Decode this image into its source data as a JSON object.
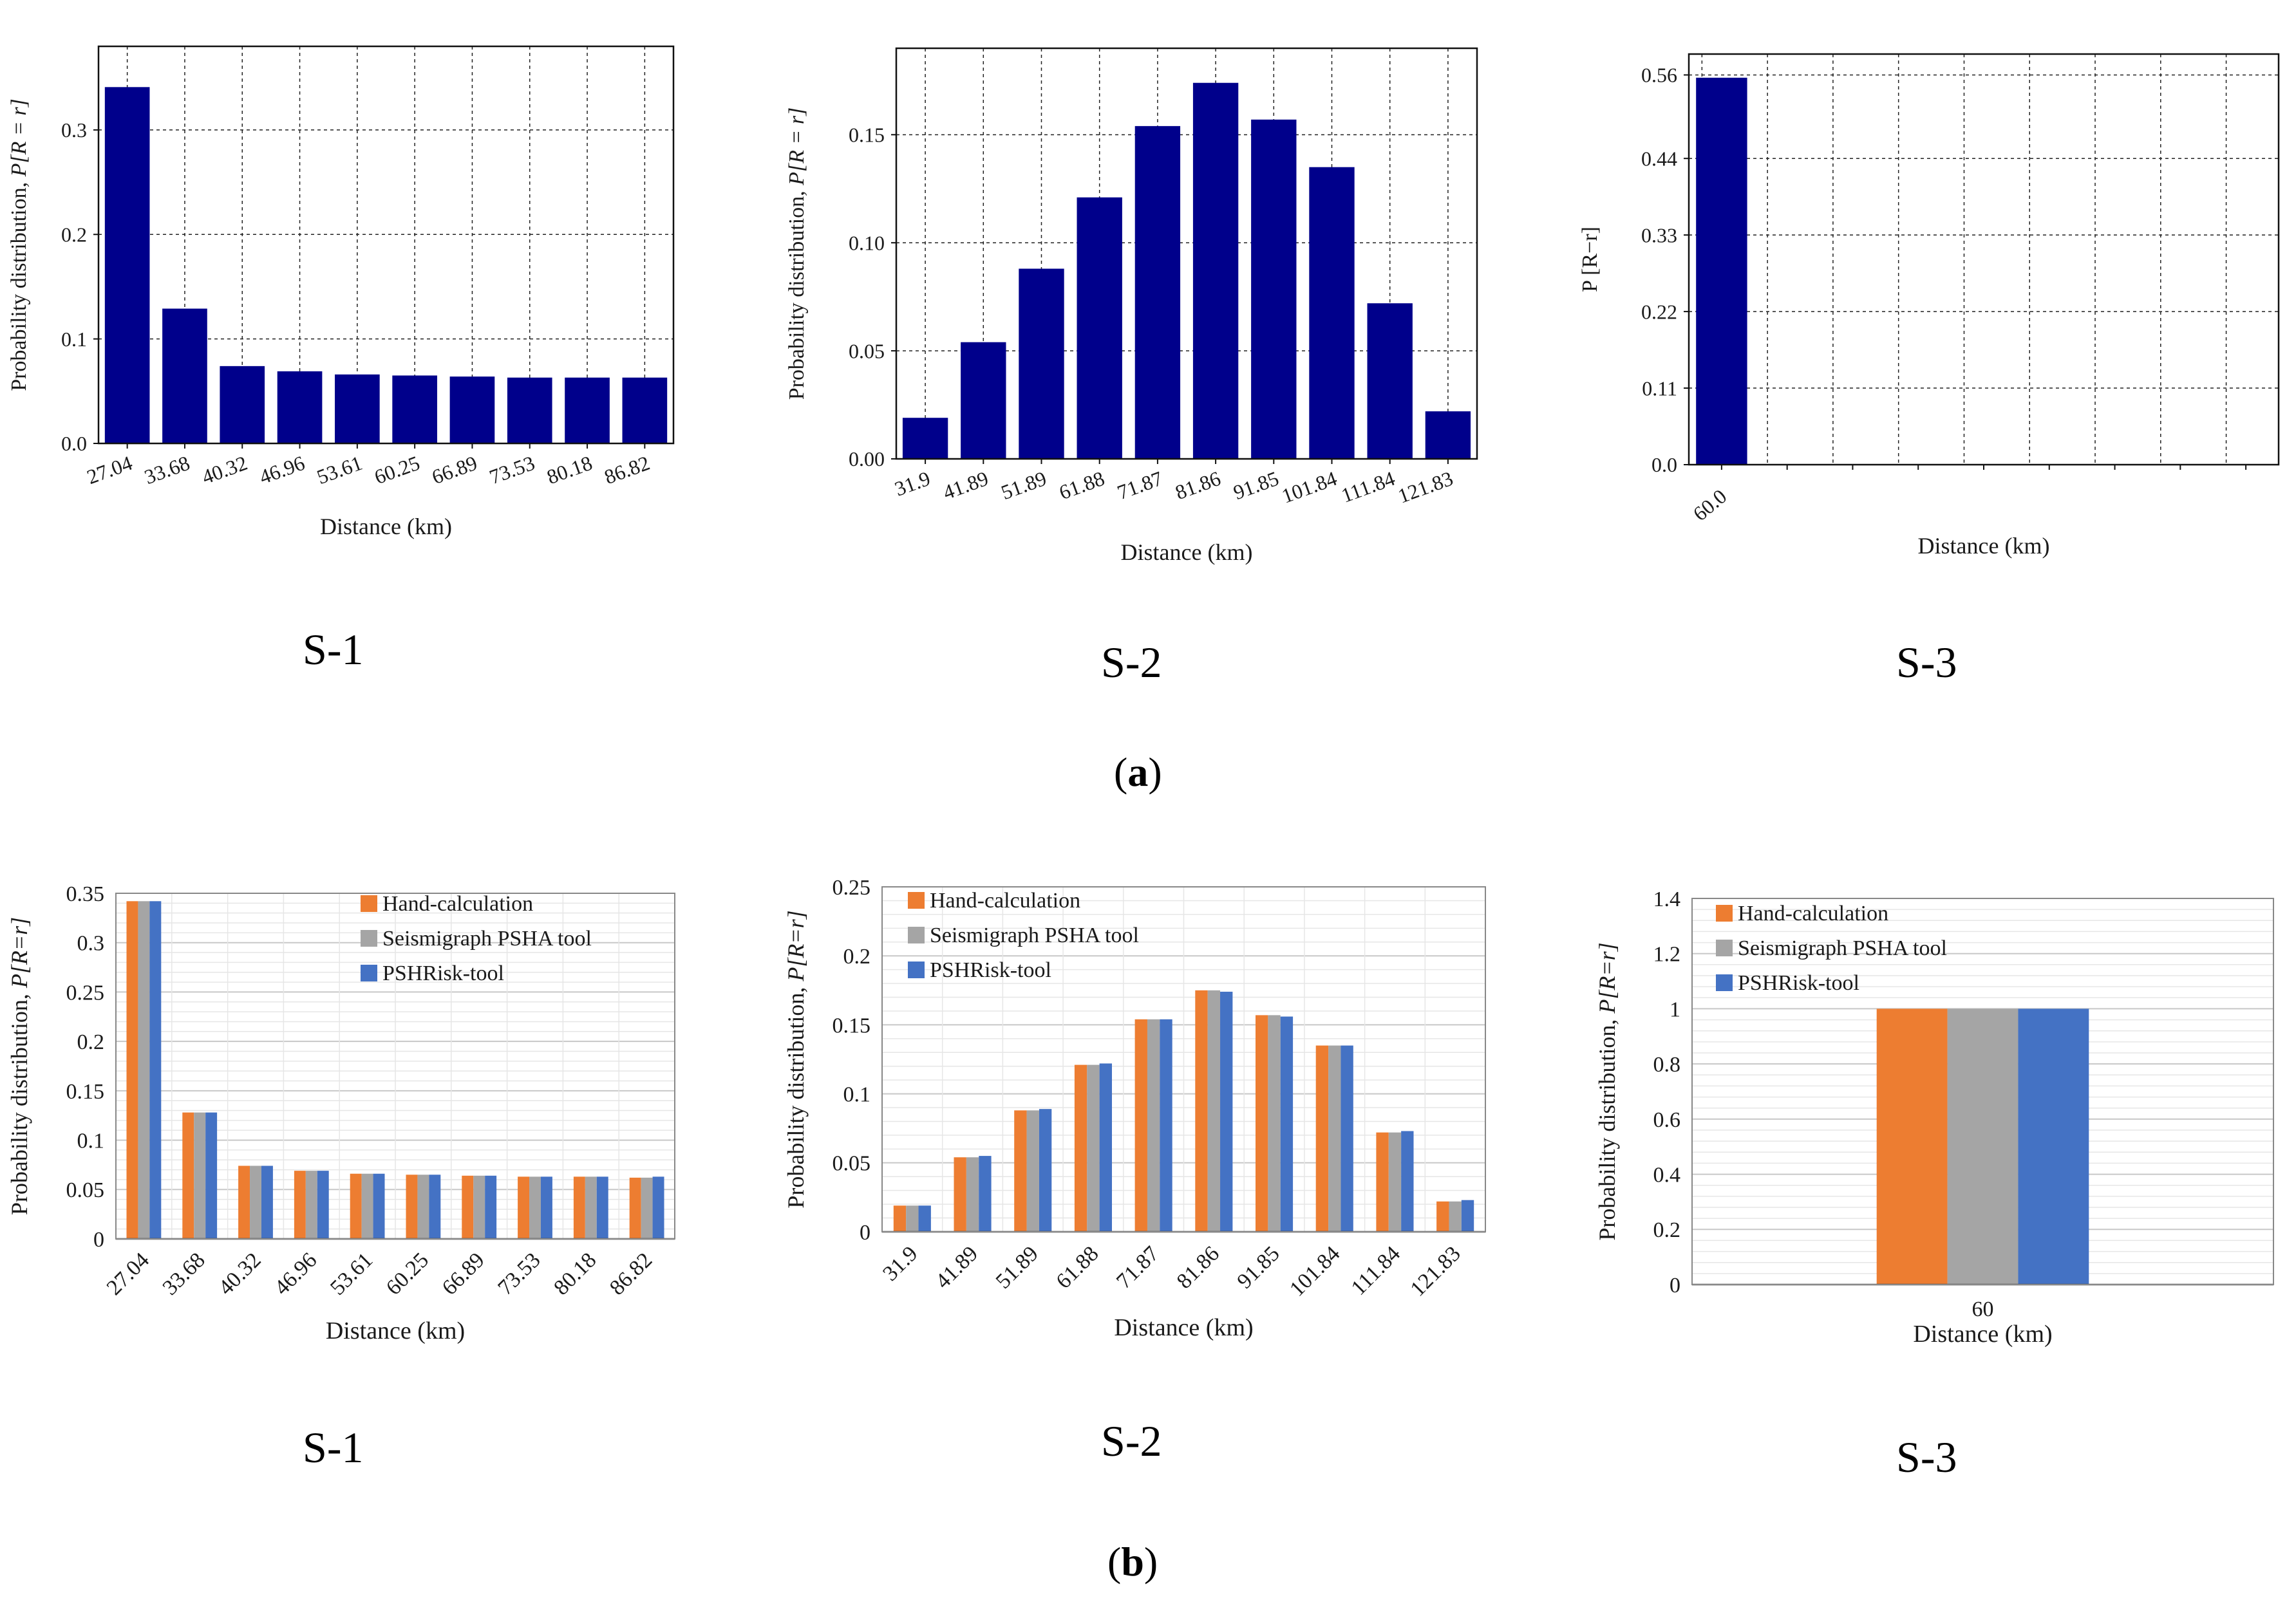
{
  "colors": {
    "navy": "#00008b",
    "hand": "#ed7d31",
    "seis": "#a5a5a5",
    "pshr": "#4472c4"
  },
  "captions": {
    "a": {
      "open": "(",
      "letter": "a",
      "close": ")"
    },
    "b": {
      "open": "(",
      "letter": "b",
      "close": ")"
    },
    "top": [
      "S-1",
      "S-2",
      "S-3"
    ],
    "bottom": [
      "S-1",
      "S-2",
      "S-3"
    ]
  },
  "chart_data": [
    {
      "id": "a-s1",
      "panel": "a",
      "site": "S-1",
      "type": "bar",
      "xlabel": "Distance (km)",
      "ylabel": "Probability distribution, ",
      "ylabel_math": "P[R = r]",
      "categories": [
        "27.04",
        "33.68",
        "40.32",
        "46.96",
        "53.61",
        "60.25",
        "66.89",
        "73.53",
        "80.18",
        "86.82"
      ],
      "values": [
        0.341,
        0.129,
        0.074,
        0.069,
        0.066,
        0.065,
        0.064,
        0.063,
        0.063,
        0.063
      ],
      "ylim": [
        0,
        0.38
      ],
      "yticks": [
        0.0,
        0.1,
        0.2,
        0.3
      ],
      "ytick_labels": [
        "0.0",
        "0.1",
        "0.2",
        "0.3"
      ],
      "grid": true
    },
    {
      "id": "a-s2",
      "panel": "a",
      "site": "S-2",
      "type": "bar",
      "xlabel": "Distance (km)",
      "ylabel": "Probability distribution, ",
      "ylabel_math": "P[R = r]",
      "categories": [
        "31.9",
        "41.89",
        "51.89",
        "61.88",
        "71.87",
        "81.86",
        "91.85",
        "101.84",
        "111.84",
        "121.83"
      ],
      "values": [
        0.019,
        0.054,
        0.088,
        0.121,
        0.154,
        0.174,
        0.157,
        0.135,
        0.072,
        0.022
      ],
      "ylim": [
        0,
        0.19
      ],
      "yticks": [
        0.0,
        0.05,
        0.1,
        0.15
      ],
      "ytick_labels": [
        "0.00",
        "0.05",
        "0.10",
        "0.15"
      ],
      "grid": true
    },
    {
      "id": "a-s3",
      "panel": "a",
      "site": "S-3",
      "type": "bar",
      "xlabel": "Distance (km)",
      "ylabel": "P [R−r]",
      "categories": [
        "60.0"
      ],
      "values": [
        0.556
      ],
      "ylim": [
        0,
        0.59
      ],
      "yticks": [
        0.0,
        0.11,
        0.22,
        0.33,
        0.44,
        0.56
      ],
      "ytick_labels": [
        "0.0",
        "0.11",
        "0.22",
        "0.33",
        "0.44",
        "0.56"
      ],
      "grid": true
    },
    {
      "id": "b-s1",
      "panel": "b",
      "site": "S-1",
      "type": "bar",
      "xlabel": "Distance (km)",
      "ylabel": "Probability distribution, ",
      "ylabel_math": "P[R=r]",
      "categories": [
        "27.04",
        "33.68",
        "40.32",
        "46.96",
        "53.61",
        "60.25",
        "66.89",
        "73.53",
        "80.18",
        "86.82"
      ],
      "legend": "top-right",
      "series": [
        {
          "name": "Hand-calculation",
          "color": "#ed7d31",
          "values": [
            0.342,
            0.128,
            0.074,
            0.069,
            0.066,
            0.065,
            0.064,
            0.063,
            0.063,
            0.062
          ]
        },
        {
          "name": "Seismigraph PSHA tool",
          "color": "#a5a5a5",
          "values": [
            0.342,
            0.128,
            0.074,
            0.069,
            0.066,
            0.065,
            0.064,
            0.063,
            0.063,
            0.062
          ]
        },
        {
          "name": "PSHRisk-tool",
          "color": "#4472c4",
          "values": [
            0.342,
            0.128,
            0.074,
            0.069,
            0.066,
            0.065,
            0.064,
            0.063,
            0.063,
            0.063
          ]
        }
      ],
      "ylim": [
        0,
        0.35
      ],
      "yticks": [
        0,
        0.05,
        0.1,
        0.15,
        0.2,
        0.25,
        0.3,
        0.35
      ],
      "ytick_labels": [
        "0",
        "0.05",
        "0.1",
        "0.15",
        "0.2",
        "0.25",
        "0.3",
        "0.35"
      ],
      "grid": true
    },
    {
      "id": "b-s2",
      "panel": "b",
      "site": "S-2",
      "type": "bar",
      "xlabel": "Distance (km)",
      "ylabel": "Probability distribution, ",
      "ylabel_math": "P[R=r]",
      "categories": [
        "31.9",
        "41.89",
        "51.89",
        "61.88",
        "71.87",
        "81.86",
        "91.85",
        "101.84",
        "111.84",
        "121.83"
      ],
      "legend": "top-left",
      "series": [
        {
          "name": "Hand-calculation",
          "color": "#ed7d31",
          "values": [
            0.019,
            0.054,
            0.088,
            0.121,
            0.154,
            0.175,
            0.157,
            0.135,
            0.072,
            0.022
          ]
        },
        {
          "name": "Seismigraph PSHA tool",
          "color": "#a5a5a5",
          "values": [
            0.019,
            0.054,
            0.088,
            0.121,
            0.154,
            0.175,
            0.157,
            0.135,
            0.072,
            0.022
          ]
        },
        {
          "name": "PSHRisk-tool",
          "color": "#4472c4",
          "values": [
            0.019,
            0.055,
            0.089,
            0.122,
            0.154,
            0.174,
            0.156,
            0.135,
            0.073,
            0.023
          ]
        }
      ],
      "ylim": [
        0,
        0.25
      ],
      "yticks": [
        0,
        0.05,
        0.1,
        0.15,
        0.2,
        0.25
      ],
      "ytick_labels": [
        "0",
        "0.05",
        "0.1",
        "0.15",
        "0.2",
        "0.25"
      ],
      "grid": true
    },
    {
      "id": "b-s3",
      "panel": "b",
      "site": "S-3",
      "type": "bar",
      "xlabel": "Distance (km)",
      "ylabel": "Probability distribution, ",
      "ylabel_math": "P[R=r]",
      "categories": [
        "60"
      ],
      "legend": "top-left",
      "series": [
        {
          "name": "Hand-calculation",
          "color": "#ed7d31",
          "values": [
            1
          ]
        },
        {
          "name": "Seismigraph PSHA tool",
          "color": "#a5a5a5",
          "values": [
            1
          ]
        },
        {
          "name": "PSHRisk-tool",
          "color": "#4472c4",
          "values": [
            1
          ]
        }
      ],
      "ylim": [
        0,
        1.4
      ],
      "yticks": [
        0,
        0.2,
        0.4,
        0.6,
        0.8,
        1,
        1.2,
        1.4
      ],
      "ytick_labels": [
        "0",
        "0.2",
        "0.4",
        "0.6",
        "0.8",
        "1",
        "1.2",
        "1.4"
      ],
      "grid": true
    }
  ]
}
